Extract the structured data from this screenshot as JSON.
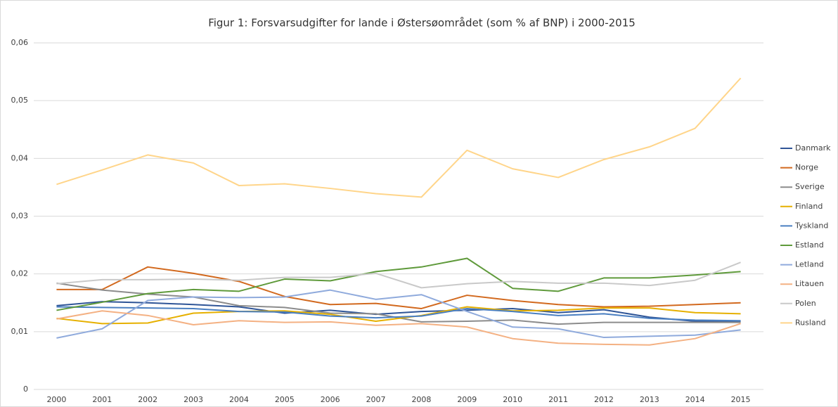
{
  "chart_data": {
    "type": "line",
    "title": "Figur 1: Forsvarsudgifter for lande i Østersøområdet (som % af BNP) i 2000-2015",
    "categories": [
      "2000",
      "2001",
      "2002",
      "2003",
      "2004",
      "2005",
      "2006",
      "2007",
      "2008",
      "2009",
      "2010",
      "2011",
      "2012",
      "2013",
      "2014",
      "2015"
    ],
    "ylim": [
      0,
      0.06
    ],
    "yticks": [
      0,
      {
        "value": 0.01,
        "label": "0,01"
      },
      {
        "value": 0.02,
        "label": "0,02"
      },
      {
        "value": 0.03,
        "label": "0,03"
      },
      {
        "value": 0.04,
        "label": "0,04"
      },
      {
        "value": 0.05,
        "label": "0,05"
      },
      {
        "value": 0.06,
        "label": "0,06"
      }
    ],
    "grid": true,
    "legend": "right",
    "series": [
      {
        "name": "Danmark",
        "color": "#2f5597",
        "values": [
          0.0145,
          0.0152,
          0.015,
          0.0147,
          0.0143,
          0.0132,
          0.0137,
          0.013,
          0.0135,
          0.0137,
          0.014,
          0.0133,
          0.0138,
          0.0125,
          0.0118,
          0.0118
        ]
      },
      {
        "name": "Norge",
        "color": "#d2691e",
        "values": [
          0.0173,
          0.0173,
          0.0212,
          0.0201,
          0.0187,
          0.0161,
          0.0147,
          0.0149,
          0.014,
          0.0163,
          0.0154,
          0.0147,
          0.0143,
          0.0144,
          0.0147,
          0.015
        ]
      },
      {
        "name": "Sverige",
        "color": "#8c8c8c",
        "values": [
          0.0184,
          0.0172,
          0.0165,
          0.016,
          0.0145,
          0.0142,
          0.0132,
          0.0131,
          0.0117,
          0.0118,
          0.012,
          0.0113,
          0.0116,
          0.0116,
          0.0116,
          0.0116
        ]
      },
      {
        "name": "Finland",
        "color": "#e6b000",
        "values": [
          0.0123,
          0.0114,
          0.0115,
          0.0132,
          0.0135,
          0.0136,
          0.013,
          0.0118,
          0.0128,
          0.0143,
          0.0136,
          0.0137,
          0.0141,
          0.0141,
          0.0133,
          0.0131
        ]
      },
      {
        "name": "Tyskland",
        "color": "#4a7fc1",
        "values": [
          0.0143,
          0.0142,
          0.0141,
          0.014,
          0.0135,
          0.0134,
          0.0127,
          0.0124,
          0.0127,
          0.014,
          0.0135,
          0.0128,
          0.0131,
          0.0123,
          0.012,
          0.0119
        ]
      },
      {
        "name": "Estland",
        "color": "#5f9a3b",
        "values": [
          0.0137,
          0.0151,
          0.0166,
          0.0173,
          0.017,
          0.0191,
          0.0188,
          0.0204,
          0.0212,
          0.0227,
          0.0175,
          0.017,
          0.0193,
          0.0193,
          0.0198,
          0.0204
        ]
      },
      {
        "name": "Letland",
        "color": "#8faadc",
        "values": [
          0.0089,
          0.0105,
          0.0154,
          0.016,
          0.0159,
          0.016,
          0.0172,
          0.0156,
          0.0164,
          0.0135,
          0.0108,
          0.0105,
          0.009,
          0.0092,
          0.0094,
          0.0103
        ]
      },
      {
        "name": "Litauen",
        "color": "#f4b183",
        "values": [
          0.0122,
          0.0136,
          0.0128,
          0.0112,
          0.0119,
          0.0116,
          0.0117,
          0.0111,
          0.0114,
          0.0108,
          0.0088,
          0.008,
          0.0078,
          0.0077,
          0.0088,
          0.0114
        ]
      },
      {
        "name": "Polen",
        "color": "#c9c9c9",
        "values": [
          0.0183,
          0.019,
          0.019,
          0.0191,
          0.0189,
          0.0194,
          0.0194,
          0.0201,
          0.0176,
          0.0183,
          0.0187,
          0.0184,
          0.0184,
          0.018,
          0.0189,
          0.022
        ]
      },
      {
        "name": "Rusland",
        "color": "#ffd58a",
        "values": [
          0.0355,
          0.038,
          0.0406,
          0.0392,
          0.0353,
          0.0356,
          0.0348,
          0.0339,
          0.0333,
          0.0414,
          0.0382,
          0.0367,
          0.0398,
          0.042,
          0.0452,
          0.0539
        ]
      }
    ]
  }
}
